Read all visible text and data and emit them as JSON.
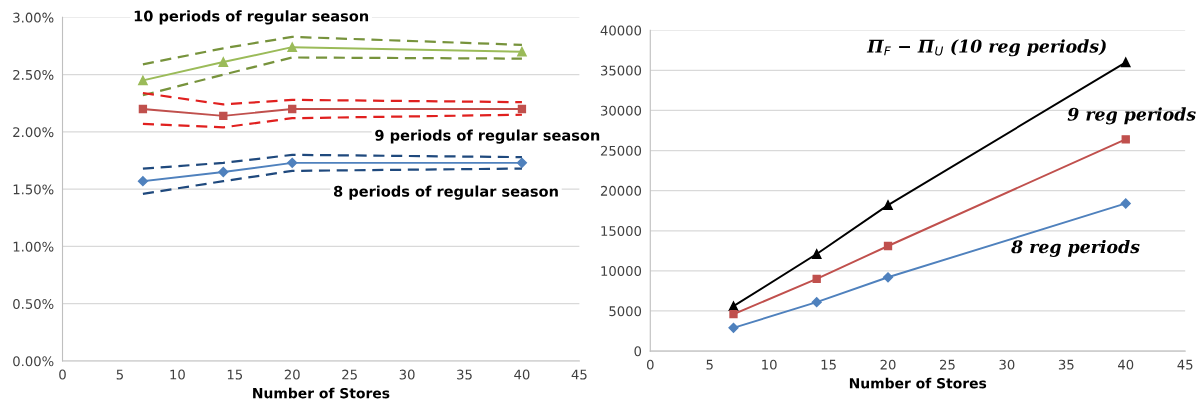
{
  "chart_data": [
    {
      "type": "line",
      "xlabel": "Number of Stores",
      "xlim": [
        0,
        45
      ],
      "xticks": [
        0,
        5,
        10,
        15,
        20,
        25,
        30,
        35,
        40,
        45
      ],
      "ylim": [
        0,
        3
      ],
      "yticks": [
        {
          "value": 0,
          "label": "0.00%"
        },
        {
          "value": 0.5,
          "label": "0.50%"
        },
        {
          "value": 1,
          "label": "1.00%"
        },
        {
          "value": 1.5,
          "label": "1.50%"
        },
        {
          "value": 2,
          "label": "2.00%"
        },
        {
          "value": 2.5,
          "label": "2.50%"
        },
        {
          "value": 3,
          "label": "3.00%"
        }
      ],
      "grid": "y",
      "x": [
        7,
        14,
        20,
        40
      ],
      "series": [
        {
          "name": "10 periods of regular season",
          "color": "#9bbb59",
          "marker": "triangle",
          "line_style": "solid",
          "values": [
            2.45,
            2.61,
            2.74,
            2.7
          ]
        },
        {
          "color": "#77933c",
          "marker": "none",
          "line_style": "dashed",
          "values": [
            2.59,
            2.73,
            2.83,
            2.76
          ]
        },
        {
          "color": "#77933c",
          "marker": "none",
          "line_style": "dashed",
          "values": [
            2.32,
            2.5,
            2.65,
            2.64
          ]
        },
        {
          "name": "9 periods of regular season",
          "color": "#c0504d",
          "marker": "square",
          "line_style": "solid",
          "values": [
            2.2,
            2.14,
            2.2,
            2.2
          ]
        },
        {
          "color": "#e0201f",
          "marker": "none",
          "line_style": "dashed",
          "values": [
            2.34,
            2.24,
            2.28,
            2.26
          ]
        },
        {
          "color": "#e0201f",
          "marker": "none",
          "line_style": "dashed",
          "values": [
            2.07,
            2.04,
            2.12,
            2.15
          ]
        },
        {
          "name": "8 periods of regular season",
          "color": "#4f81bd",
          "marker": "diamond",
          "line_style": "solid",
          "values": [
            1.57,
            1.65,
            1.73,
            1.73
          ]
        },
        {
          "color": "#1f497d",
          "marker": "none",
          "line_style": "dashed",
          "values": [
            1.68,
            1.73,
            1.8,
            1.78
          ]
        },
        {
          "color": "#1f497d",
          "marker": "none",
          "line_style": "dashed",
          "values": [
            1.46,
            1.57,
            1.66,
            1.68
          ]
        }
      ]
    },
    {
      "type": "line",
      "xlabel": "Number of Stores",
      "xlim": [
        0,
        45
      ],
      "xticks": [
        0,
        5,
        10,
        15,
        20,
        25,
        30,
        35,
        40,
        45
      ],
      "ylim": [
        0,
        40000
      ],
      "yticks": [
        0,
        5000,
        10000,
        15000,
        20000,
        25000,
        30000,
        35000,
        40000
      ],
      "grid": "y",
      "x": [
        7,
        14,
        20,
        40
      ],
      "series": [
        {
          "name": "Π$_{F}$ − Π$_{U}$ (10 reg periods)",
          "color": "#000000",
          "marker": "triangle",
          "line_style": "solid",
          "values": [
            5600,
            12100,
            18200,
            36000
          ]
        },
        {
          "name": "9 reg periods",
          "color": "#c0504d",
          "marker": "square",
          "line_style": "solid",
          "values": [
            4600,
            9000,
            13100,
            26400
          ]
        },
        {
          "name": "8 reg periods",
          "color": "#4f81bd",
          "marker": "diamond",
          "line_style": "solid",
          "values": [
            2900,
            6100,
            9200,
            18400
          ]
        }
      ]
    }
  ]
}
